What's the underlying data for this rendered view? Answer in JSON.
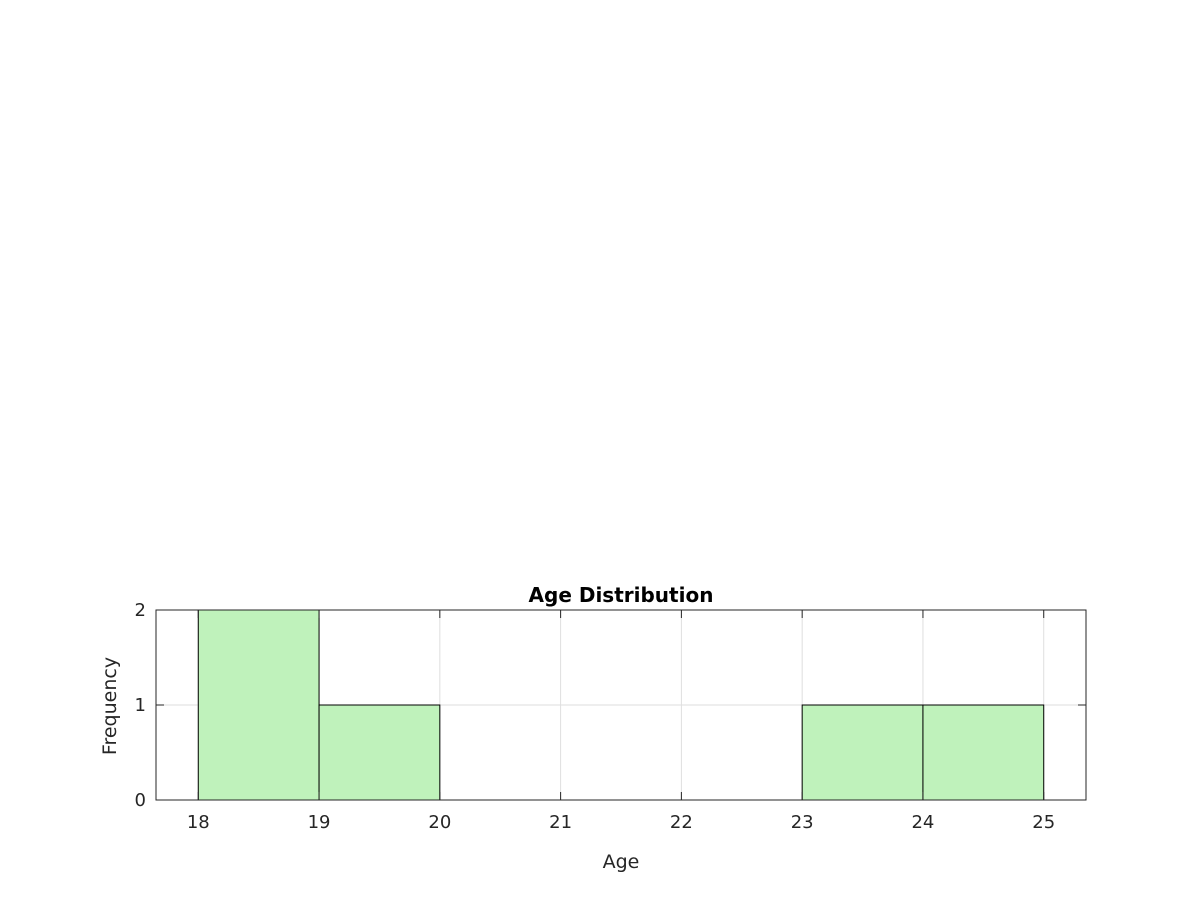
{
  "chart_data": {
    "type": "histogram",
    "title": "Age Distribution",
    "xlabel": "Age",
    "ylabel": "Frequency",
    "bins": [
      {
        "start": 18,
        "end": 19,
        "count": 2
      },
      {
        "start": 19,
        "end": 20,
        "count": 1
      },
      {
        "start": 20,
        "end": 21,
        "count": 0
      },
      {
        "start": 21,
        "end": 22,
        "count": 0
      },
      {
        "start": 22,
        "end": 23,
        "count": 0
      },
      {
        "start": 23,
        "end": 24,
        "count": 1
      },
      {
        "start": 24,
        "end": 25,
        "count": 1
      }
    ],
    "xlim": [
      17.65,
      25.35
    ],
    "ylim": [
      0,
      2
    ],
    "xticks": [
      "18",
      "19",
      "20",
      "21",
      "22",
      "23",
      "24",
      "25"
    ],
    "yticks": [
      "0",
      "1",
      "2"
    ],
    "grid": true,
    "colors": {
      "bar_fill": "#bff2bb",
      "bar_edge": "#000000",
      "grid": "#dedede",
      "axis": "#262626"
    }
  }
}
